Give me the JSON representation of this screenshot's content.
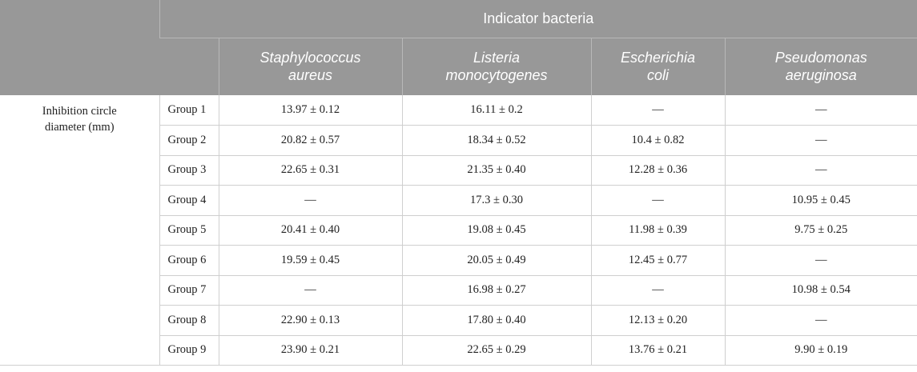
{
  "header": {
    "group_label": "Indicator bacteria",
    "columns": [
      [
        "Staphylococcus",
        "aureus"
      ],
      [
        "Listeria",
        "monocytogenes"
      ],
      [
        "Escherichia",
        "coli"
      ],
      [
        "Pseudomonas",
        "aeruginosa"
      ]
    ]
  },
  "parameter": {
    "line1": "Inhibition circle",
    "line2": "diameter (mm)"
  },
  "rows": [
    {
      "group": "Group 1",
      "values": [
        "13.97 ± 0.12",
        "16.11 ± 0.2",
        "—",
        "—"
      ]
    },
    {
      "group": "Group 2",
      "values": [
        "20.82 ± 0.57",
        "18.34 ± 0.52",
        "10.4 ± 0.82",
        "—"
      ]
    },
    {
      "group": "Group 3",
      "values": [
        "22.65 ± 0.31",
        "21.35 ± 0.40",
        "12.28 ± 0.36",
        "—"
      ]
    },
    {
      "group": "Group 4",
      "values": [
        "—",
        "17.3 ± 0.30",
        "—",
        "10.95 ± 0.45"
      ]
    },
    {
      "group": "Group 5",
      "values": [
        "20.41 ± 0.40",
        "19.08 ± 0.45",
        "11.98 ± 0.39",
        "9.75 ± 0.25"
      ]
    },
    {
      "group": "Group 6",
      "values": [
        "19.59 ± 0.45",
        "20.05 ± 0.49",
        "12.45 ± 0.77",
        "—"
      ]
    },
    {
      "group": "Group 7",
      "values": [
        "—",
        "16.98 ± 0.27",
        "—",
        "10.98 ± 0.54"
      ]
    },
    {
      "group": "Group 8",
      "values": [
        "22.90 ± 0.13",
        "17.80 ± 0.40",
        "12.13 ± 0.20",
        "—"
      ]
    },
    {
      "group": "Group 9",
      "values": [
        "23.90 ± 0.21",
        "22.65 ± 0.29",
        "13.76 ± 0.21",
        "9.90 ± 0.19"
      ]
    }
  ]
}
